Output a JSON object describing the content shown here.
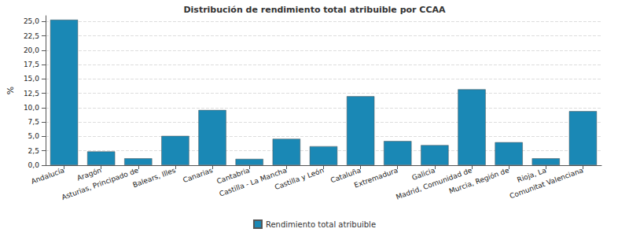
{
  "chart_data": {
    "type": "bar",
    "title": "Distribución de rendimiento total atribuible por CCAA",
    "y_label": "%",
    "categories": [
      "Andalucía",
      "Aragón",
      "Asturias, Principado de",
      "Balears, Illes",
      "Canarias",
      "Cantabria",
      "Castilla - La Mancha",
      "Castilla y León",
      "Cataluña",
      "Extremadura",
      "Galicia",
      "Madrid, Comunidad de",
      "Murcia, Región de",
      "Rioja, La",
      "Comunitat Valenciana"
    ],
    "series": [
      {
        "name": "Rendimiento total atribuible",
        "color": "#1a88b5",
        "values": [
          25.3,
          2.4,
          1.2,
          5.1,
          9.6,
          1.1,
          4.6,
          3.3,
          12.0,
          4.2,
          3.5,
          13.2,
          4.0,
          1.2,
          9.4
        ]
      }
    ],
    "ylim": [
      0,
      26
    ],
    "yticks": [
      {
        "value": 0,
        "label": "0,0"
      },
      {
        "value": 2.5,
        "label": "2,5"
      },
      {
        "value": 5,
        "label": "5,0"
      },
      {
        "value": 7.5,
        "label": "7,5"
      },
      {
        "value": 10,
        "label": "10,0"
      },
      {
        "value": 12.5,
        "label": "12,5"
      },
      {
        "value": 15,
        "label": "15,0"
      },
      {
        "value": 17.5,
        "label": "17,5"
      },
      {
        "value": 20,
        "label": "20,0"
      },
      {
        "value": 22.5,
        "label": "22,5"
      },
      {
        "value": 25,
        "label": "25,0"
      }
    ],
    "grid": true,
    "legend": "bottom"
  }
}
